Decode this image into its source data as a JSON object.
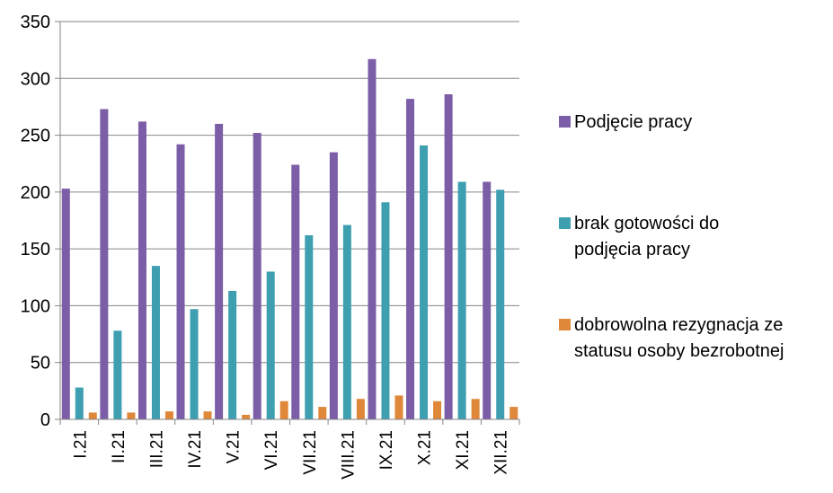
{
  "chart_data": {
    "type": "bar",
    "categories": [
      "I.21",
      "II.21",
      "III.21",
      "IV.21",
      "V.21",
      "VI.21",
      "VII.21",
      "VIII.21",
      "IX.21",
      "X.21",
      "XI.21",
      "XII.21"
    ],
    "series": [
      {
        "name": "Podjęcie pracy",
        "color": "#7b5ea7",
        "values": [
          203,
          273,
          262,
          242,
          260,
          252,
          224,
          235,
          317,
          282,
          286,
          209
        ]
      },
      {
        "name": "brak gotowości do podjęcia pracy",
        "color": "#3e9fb1",
        "values": [
          28,
          78,
          135,
          97,
          113,
          130,
          162,
          171,
          191,
          241,
          209,
          202
        ]
      },
      {
        "name": "dobrowolna rezygnacja ze statusu osoby bezrobotnej",
        "color": "#e0883a",
        "values": [
          6,
          6,
          7,
          7,
          4,
          16,
          11,
          18,
          21,
          16,
          18,
          11
        ]
      }
    ],
    "yticks": [
      0,
      50,
      100,
      150,
      200,
      250,
      300,
      350
    ],
    "ylim": [
      0,
      350
    ],
    "grid": true,
    "legend": "right"
  }
}
